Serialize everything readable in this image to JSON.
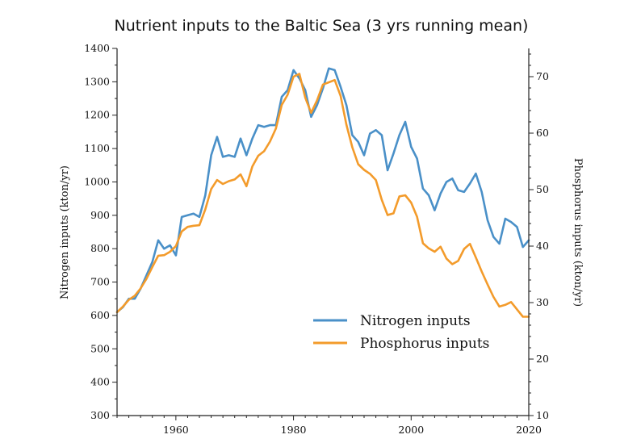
{
  "chart_data": {
    "type": "line",
    "title": "Nutrient inputs to the Baltic Sea (3 yrs running mean)",
    "xlabel": "",
    "ylabel": "Nitrogen inputs (kton/yr)",
    "y2label": "Phosphorus inputs (kton/yr)",
    "xlim": [
      1950,
      2020
    ],
    "ylim": [
      300,
      1400
    ],
    "y2lim": [
      10,
      75
    ],
    "x_ticks": [
      1960,
      1980,
      2000,
      2020
    ],
    "y_ticks": [
      300,
      400,
      500,
      600,
      700,
      800,
      900,
      1000,
      1100,
      1200,
      1300,
      1400
    ],
    "y2_ticks": [
      10,
      20,
      30,
      40,
      50,
      60,
      70
    ],
    "grid": false,
    "legend_position": "lower-right",
    "x": [
      1950,
      1951,
      1952,
      1953,
      1954,
      1955,
      1956,
      1957,
      1958,
      1959,
      1960,
      1961,
      1962,
      1963,
      1964,
      1965,
      1966,
      1967,
      1968,
      1969,
      1970,
      1971,
      1972,
      1973,
      1974,
      1975,
      1976,
      1977,
      1978,
      1979,
      1980,
      1981,
      1982,
      1983,
      1984,
      1985,
      1986,
      1987,
      1988,
      1989,
      1990,
      1991,
      1992,
      1993,
      1994,
      1995,
      1996,
      1997,
      1998,
      1999,
      2000,
      2001,
      2002,
      2003,
      2004,
      2005,
      2006,
      2007,
      2008,
      2009,
      2010,
      2011,
      2012,
      2013,
      2014,
      2015,
      2016,
      2017,
      2018,
      2019,
      2020
    ],
    "series": [
      {
        "name": "Nitrogen inputs",
        "axis": "left",
        "color": "#4a90c8",
        "values": [
          610,
          625,
          650,
          650,
          680,
          720,
          760,
          825,
          800,
          810,
          780,
          895,
          900,
          905,
          895,
          960,
          1080,
          1135,
          1075,
          1080,
          1075,
          1130,
          1080,
          1130,
          1170,
          1165,
          1170,
          1170,
          1255,
          1275,
          1335,
          1310,
          1275,
          1195,
          1230,
          1280,
          1340,
          1335,
          1285,
          1230,
          1140,
          1120,
          1080,
          1145,
          1155,
          1140,
          1035,
          1085,
          1140,
          1180,
          1105,
          1070,
          980,
          960,
          915,
          965,
          1000,
          1010,
          975,
          970,
          995,
          1025,
          970,
          885,
          835,
          815,
          890,
          880,
          865,
          805,
          825
        ]
      },
      {
        "name": "Phosphorus inputs",
        "axis": "right",
        "color": "#f39b2b",
        "values": [
          28.3,
          29.3,
          30.5,
          31.2,
          32.5,
          34.2,
          36.3,
          38.3,
          38.4,
          39.0,
          40.0,
          42.6,
          43.4,
          43.6,
          43.7,
          46.5,
          50.1,
          51.7,
          51.0,
          51.5,
          51.8,
          52.7,
          50.6,
          54.1,
          56.0,
          56.8,
          58.5,
          60.8,
          65.0,
          66.8,
          70.0,
          70.5,
          66.3,
          63.6,
          65.8,
          68.6,
          69.0,
          69.4,
          66.6,
          61.5,
          57.5,
          54.5,
          53.5,
          52.8,
          51.7,
          48.2,
          45.5,
          45.8,
          48.8,
          49.0,
          47.7,
          45.2,
          40.5,
          39.6,
          39.0,
          39.9,
          37.8,
          36.8,
          37.4,
          39.5,
          40.4,
          38.0,
          35.5,
          33.2,
          31.0,
          29.3,
          29.6,
          30.1,
          28.8,
          27.5,
          27.5
        ]
      }
    ]
  }
}
